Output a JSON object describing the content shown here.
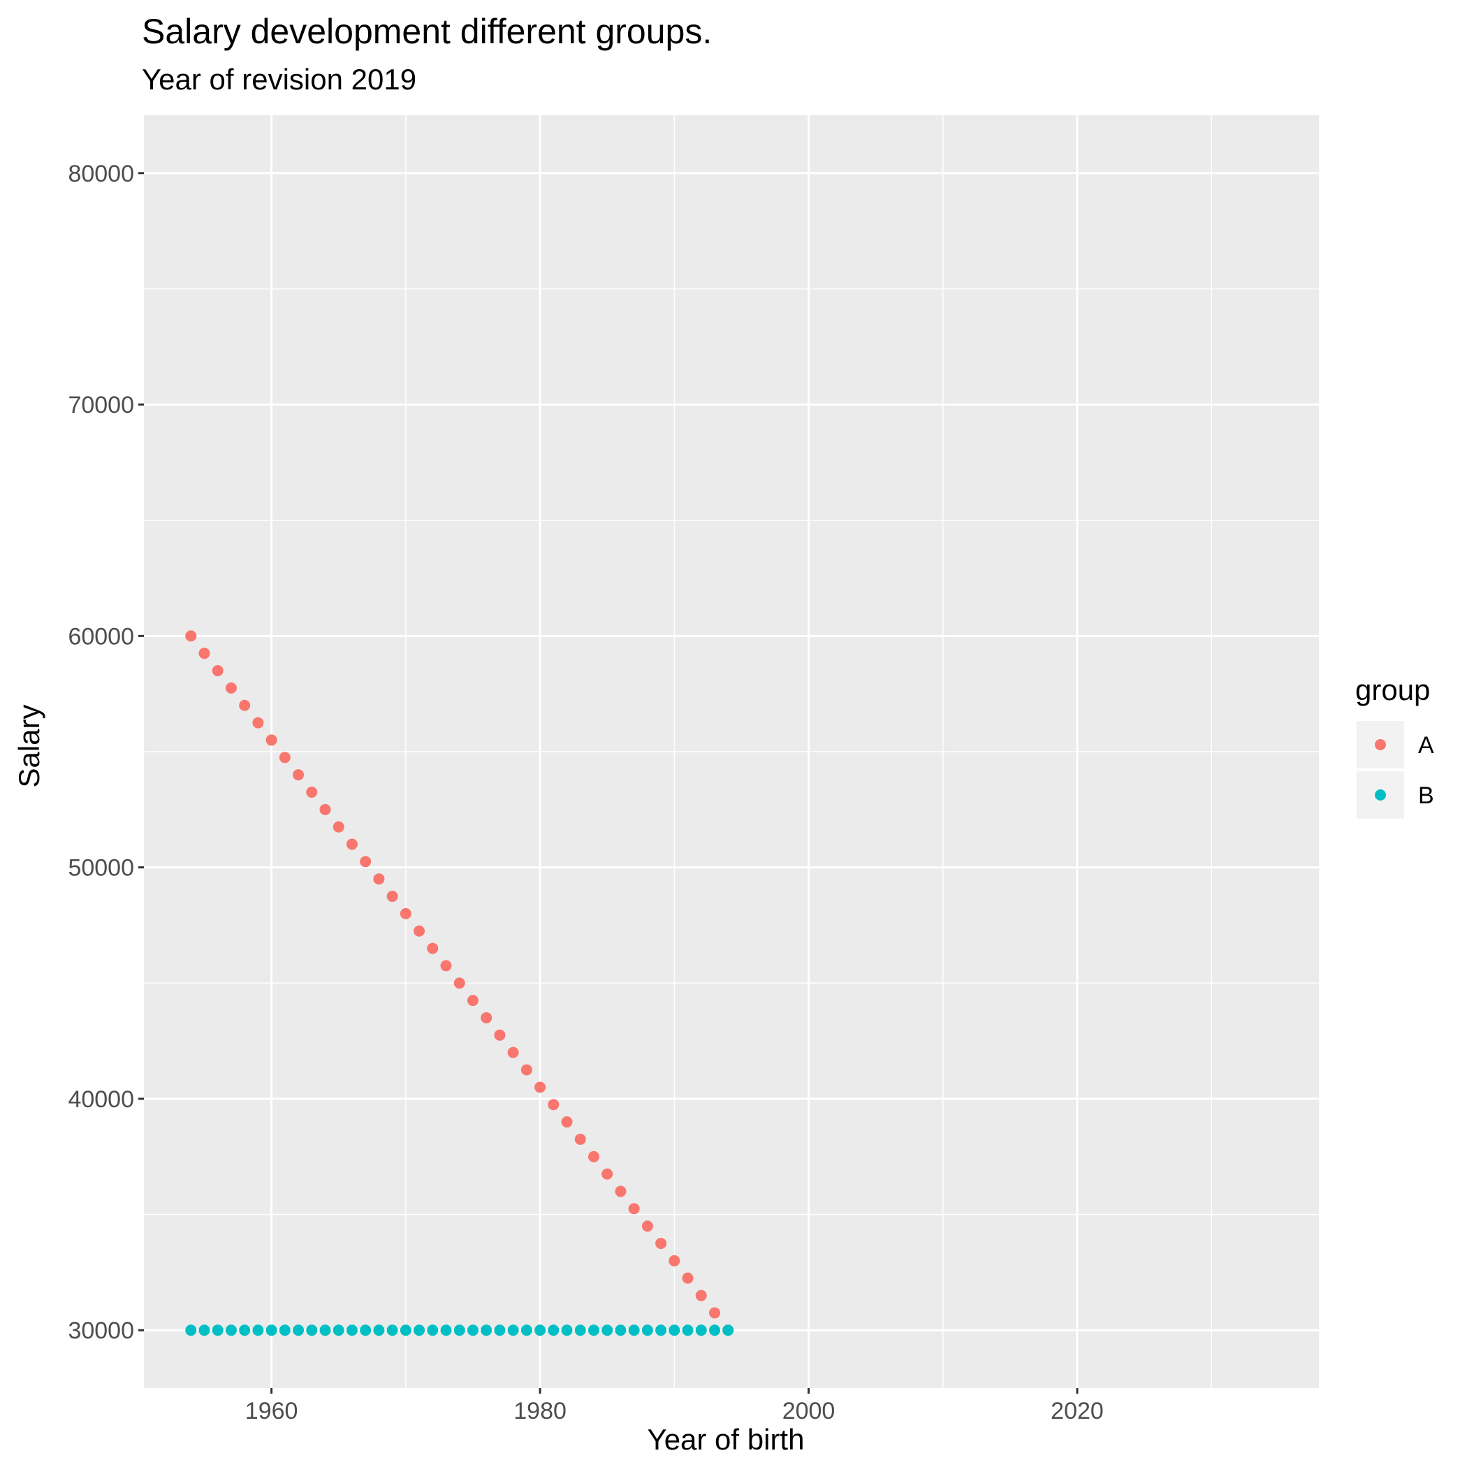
{
  "chart_data": {
    "type": "scatter",
    "title": "Salary development different groups.",
    "subtitle": "Year of revision 2019",
    "xlabel": "Year of birth",
    "ylabel": "Salary",
    "xlim": [
      1950.5,
      2038.0
    ],
    "ylim": [
      27500,
      82500
    ],
    "x_ticks": [
      1960,
      1980,
      2000,
      2020
    ],
    "x_minor": [
      1950,
      1970,
      1990,
      2010,
      2030
    ],
    "y_ticks": [
      30000,
      40000,
      50000,
      60000,
      70000,
      80000
    ],
    "y_minor": [
      35000,
      45000,
      55000,
      65000,
      75000
    ],
    "grid": true,
    "legend": {
      "title": "group",
      "position": "right"
    },
    "series": [
      {
        "name": "A",
        "color": "#F8766D",
        "x": [
          1954,
          1955,
          1956,
          1957,
          1958,
          1959,
          1960,
          1961,
          1962,
          1963,
          1964,
          1965,
          1966,
          1967,
          1968,
          1969,
          1970,
          1971,
          1972,
          1973,
          1974,
          1975,
          1976,
          1977,
          1978,
          1979,
          1980,
          1981,
          1982,
          1983,
          1984,
          1985,
          1986,
          1987,
          1988,
          1989,
          1990,
          1991,
          1992,
          1993,
          1994
        ],
        "y": [
          60000,
          59250,
          58500,
          57750,
          57000,
          56250,
          55500,
          54750,
          54000,
          53250,
          52500,
          51750,
          51000,
          50250,
          49500,
          48750,
          48000,
          47250,
          46500,
          45750,
          45000,
          44250,
          43500,
          42750,
          42000,
          41250,
          40500,
          39750,
          39000,
          38250,
          37500,
          36750,
          36000,
          35250,
          34500,
          33750,
          33000,
          32250,
          31500,
          30750,
          30000
        ]
      },
      {
        "name": "B",
        "color": "#00BFC4",
        "x": [
          1954,
          1955,
          1956,
          1957,
          1958,
          1959,
          1960,
          1961,
          1962,
          1963,
          1964,
          1965,
          1966,
          1967,
          1968,
          1969,
          1970,
          1971,
          1972,
          1973,
          1974,
          1975,
          1976,
          1977,
          1978,
          1979,
          1980,
          1981,
          1982,
          1983,
          1984,
          1985,
          1986,
          1987,
          1988,
          1989,
          1990,
          1991,
          1992,
          1993,
          1994
        ],
        "y": [
          30000,
          30000,
          30000,
          30000,
          30000,
          30000,
          30000,
          30000,
          30000,
          30000,
          30000,
          30000,
          30000,
          30000,
          30000,
          30000,
          30000,
          30000,
          30000,
          30000,
          30000,
          30000,
          30000,
          30000,
          30000,
          30000,
          30000,
          30000,
          30000,
          30000,
          30000,
          30000,
          30000,
          30000,
          30000,
          30000,
          30000,
          30000,
          30000,
          30000,
          30000
        ]
      }
    ]
  }
}
